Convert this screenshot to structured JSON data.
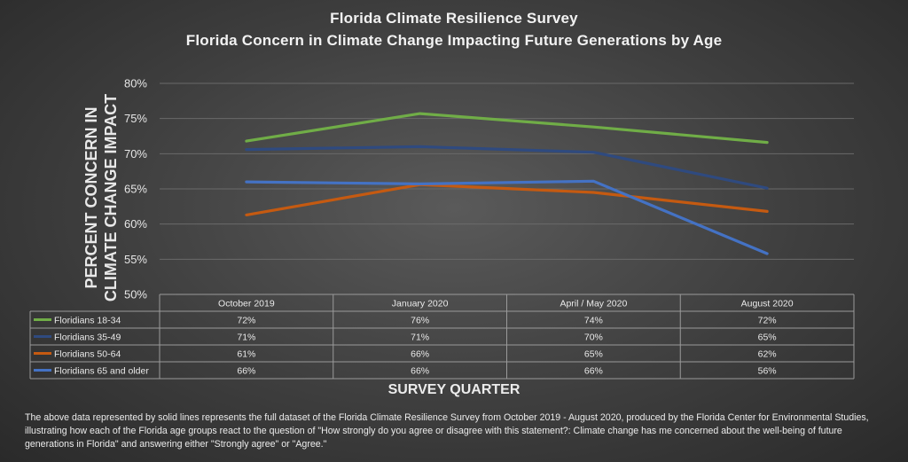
{
  "chart_data": {
    "type": "line",
    "title": "Florida Climate Resilience Survey",
    "subtitle": "Florida Concern in Climate Change Impacting Future Generations by Age",
    "ylabel_lines": [
      "PERCENT CONCERN IN",
      "CLIMATE CHANGE IMPACT"
    ],
    "xlabel": "SURVEY QUARTER",
    "categories": [
      "October 2019",
      "January 2020",
      "April / May 2020",
      "August 2020"
    ],
    "yticks": [
      "50%",
      "55%",
      "60%",
      "65%",
      "70%",
      "75%",
      "80%"
    ],
    "ylim": [
      50,
      80
    ],
    "grid": true,
    "legend_placement": "data-table",
    "series": [
      {
        "name": "Floridians 18-34",
        "color": "#70ad47",
        "values": [
          71.8,
          75.7,
          73.8,
          71.6
        ],
        "labels": [
          "72%",
          "76%",
          "74%",
          "72%"
        ]
      },
      {
        "name": "Floridians 35-49",
        "color": "#2f4a7f",
        "values": [
          70.6,
          71.0,
          70.2,
          65.1
        ],
        "labels": [
          "71%",
          "71%",
          "70%",
          "65%"
        ]
      },
      {
        "name": "Floridians 50-64",
        "color": "#c55a11",
        "values": [
          61.3,
          65.6,
          64.5,
          61.8
        ],
        "labels": [
          "61%",
          "66%",
          "65%",
          "62%"
        ]
      },
      {
        "name": "Floridians 65 and older",
        "color": "#4472c4",
        "values": [
          66.0,
          65.7,
          66.1,
          55.8
        ],
        "labels": [
          "66%",
          "66%",
          "66%",
          "56%"
        ]
      }
    ]
  },
  "footnote": "The above data represented by solid lines represents the full dataset of the Florida Climate Resilience Survey from October 2019 - August 2020, produced by the Florida Center for Environmental Studies, illustrating how each of the Florida age groups react to the question of \"How strongly do you agree or disagree with this statement?: Climate change has me concerned about the well-being of future generations in Florida\" and answering either \"Strongly agree\" or \"Agree.\""
}
